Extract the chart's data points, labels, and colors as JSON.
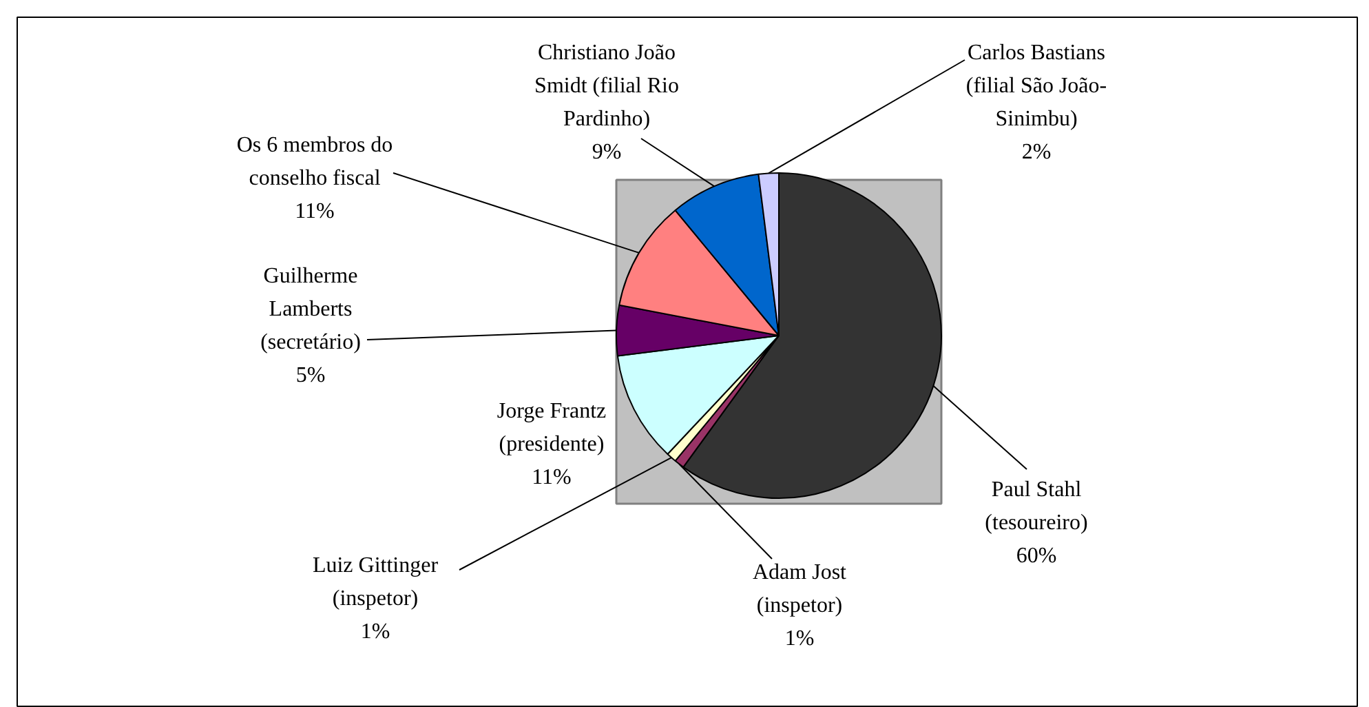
{
  "chart_data": {
    "type": "pie",
    "categories": [
      "Paul Stahl\n(tesoureiro)",
      "Adam Jost\n(inspetor)",
      "Luiz Gittinger\n(inspetor)",
      "Jorge Frantz\n(presidente)",
      "Guilherme\nLamberts\n(secretário)",
      "Os 6 membros do\nconselho fiscal",
      "Christiano João\nSmidt (filial Rio\nPardinho)",
      "Carlos Bastians\n(filial São João-\nSinimbu)"
    ],
    "values": [
      60,
      1,
      1,
      11,
      5,
      11,
      9,
      2
    ],
    "value_labels": [
      "60%",
      "1%",
      "1%",
      "11%",
      "5%",
      "11%",
      "9%",
      "2%"
    ],
    "colors": [
      "#333333",
      "#993366",
      "#ffffcc",
      "#ccffff",
      "#660066",
      "#ff8080",
      "#0066cc",
      "#ccccff"
    ]
  }
}
